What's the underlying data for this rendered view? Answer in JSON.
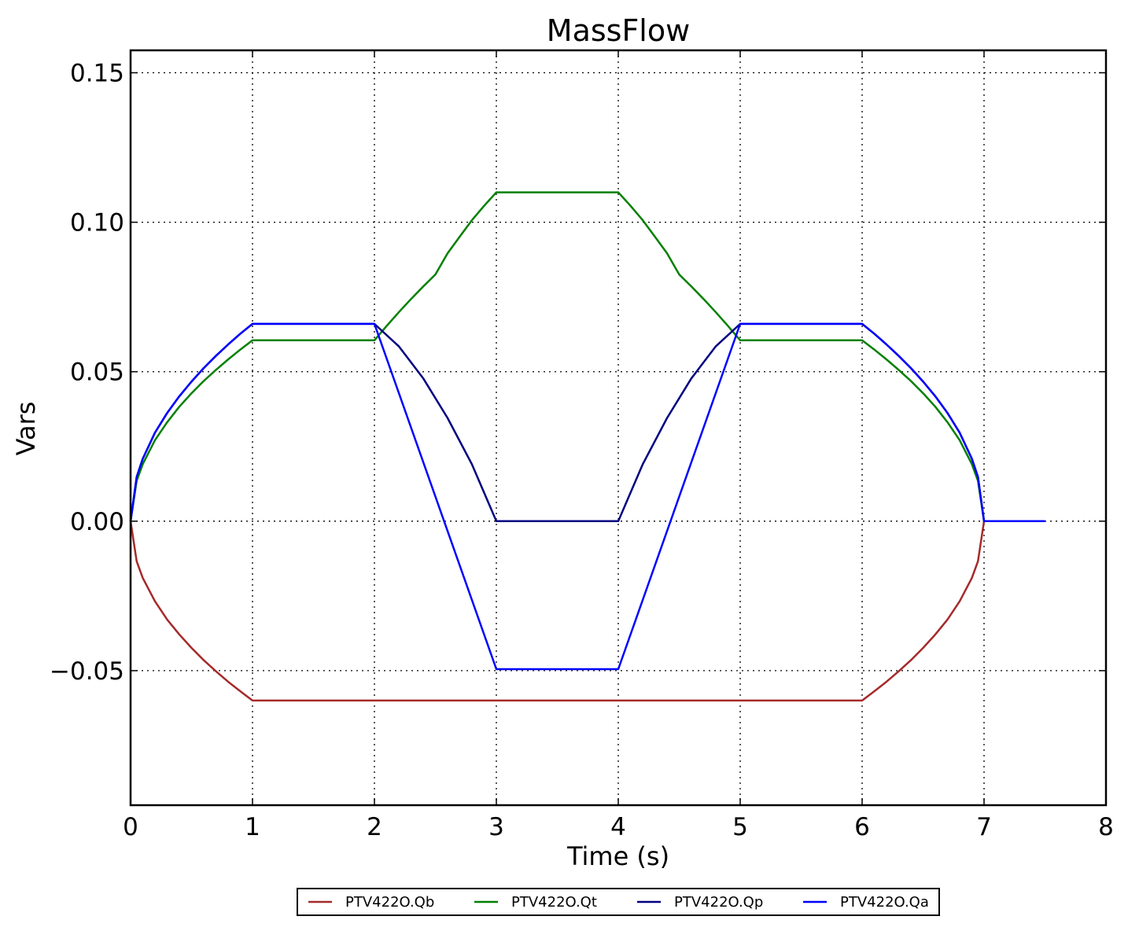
{
  "chart_data": {
    "type": "line",
    "title": "MassFlow",
    "xlabel": "Time (s)",
    "ylabel": "Vars",
    "xlim": [
      0,
      8
    ],
    "ylim": [
      -0.095,
      0.1575
    ],
    "xticks": [
      0,
      1,
      2,
      3,
      4,
      5,
      6,
      7,
      8
    ],
    "xtick_labels": [
      "0",
      "1",
      "2",
      "3",
      "4",
      "5",
      "6",
      "7",
      "8"
    ],
    "yticks": [
      -0.05,
      0.0,
      0.05,
      0.1,
      0.15
    ],
    "ytick_labels": [
      "−0.05",
      "0.00",
      "0.05",
      "0.10",
      "0.15"
    ],
    "grid": true,
    "legend_position": "bottom-center",
    "series": [
      {
        "name": "PTV422O.Qb",
        "color": "#a52a2a",
        "points": [
          [
            0,
            0
          ],
          [
            0.05,
            -0.0134
          ],
          [
            0.1,
            -0.019
          ],
          [
            0.2,
            -0.0268
          ],
          [
            0.3,
            -0.0329
          ],
          [
            0.4,
            -0.0379
          ],
          [
            0.5,
            -0.0424
          ],
          [
            0.6,
            -0.0465
          ],
          [
            0.7,
            -0.0502
          ],
          [
            0.8,
            -0.0537
          ],
          [
            0.9,
            -0.0569
          ],
          [
            1,
            -0.06
          ],
          [
            2,
            -0.06
          ],
          [
            3,
            -0.06
          ],
          [
            4,
            -0.06
          ],
          [
            5,
            -0.06
          ],
          [
            6,
            -0.06
          ],
          [
            6.1,
            -0.0569
          ],
          [
            6.2,
            -0.0537
          ],
          [
            6.3,
            -0.0502
          ],
          [
            6.4,
            -0.0465
          ],
          [
            6.5,
            -0.0424
          ],
          [
            6.6,
            -0.0379
          ],
          [
            6.7,
            -0.0329
          ],
          [
            6.8,
            -0.0268
          ],
          [
            6.9,
            -0.019
          ],
          [
            6.95,
            -0.0134
          ],
          [
            7,
            0
          ],
          [
            7.5,
            0
          ]
        ]
      },
      {
        "name": "PTV422O.Qt",
        "color": "#008000",
        "points": [
          [
            0,
            0
          ],
          [
            0.05,
            0.0135
          ],
          [
            0.1,
            0.0191
          ],
          [
            0.2,
            0.0271
          ],
          [
            0.3,
            0.0331
          ],
          [
            0.4,
            0.0383
          ],
          [
            0.5,
            0.0428
          ],
          [
            0.6,
            0.0469
          ],
          [
            0.7,
            0.0506
          ],
          [
            0.8,
            0.0541
          ],
          [
            0.9,
            0.0574
          ],
          [
            1,
            0.0605
          ],
          [
            2,
            0.0605
          ],
          [
            2.1,
            0.0653
          ],
          [
            2.2,
            0.0699
          ],
          [
            2.3,
            0.0743
          ],
          [
            2.4,
            0.0785
          ],
          [
            2.5,
            0.0825
          ],
          [
            2.6,
            0.0896
          ],
          [
            2.7,
            0.0952
          ],
          [
            2.8,
            0.1007
          ],
          [
            2.9,
            0.1055
          ],
          [
            3,
            0.11
          ],
          [
            4,
            0.11
          ],
          [
            4.1,
            0.1055
          ],
          [
            4.2,
            0.1007
          ],
          [
            4.3,
            0.0952
          ],
          [
            4.4,
            0.0896
          ],
          [
            4.5,
            0.0825
          ],
          [
            4.6,
            0.0785
          ],
          [
            4.7,
            0.0743
          ],
          [
            4.8,
            0.0699
          ],
          [
            4.9,
            0.0653
          ],
          [
            5,
            0.0605
          ],
          [
            6,
            0.0605
          ],
          [
            6.1,
            0.0574
          ],
          [
            6.2,
            0.0541
          ],
          [
            6.3,
            0.0506
          ],
          [
            6.4,
            0.0469
          ],
          [
            6.5,
            0.0428
          ],
          [
            6.6,
            0.0383
          ],
          [
            6.7,
            0.0331
          ],
          [
            6.8,
            0.0271
          ],
          [
            6.9,
            0.0191
          ],
          [
            6.95,
            0.0135
          ],
          [
            7,
            0
          ],
          [
            7.5,
            0
          ]
        ]
      },
      {
        "name": "PTV422O.Qp",
        "color": "#000080",
        "points": [
          [
            0,
            0
          ],
          [
            0.05,
            0.0148
          ],
          [
            0.1,
            0.0209
          ],
          [
            0.2,
            0.0296
          ],
          [
            0.3,
            0.0362
          ],
          [
            0.4,
            0.0418
          ],
          [
            0.5,
            0.0467
          ],
          [
            0.6,
            0.0512
          ],
          [
            0.7,
            0.0553
          ],
          [
            0.8,
            0.0591
          ],
          [
            0.9,
            0.0627
          ],
          [
            1,
            0.066
          ],
          [
            2,
            0.066
          ],
          [
            2.2,
            0.0585
          ],
          [
            2.4,
            0.0478
          ],
          [
            2.6,
            0.0345
          ],
          [
            2.8,
            0.019
          ],
          [
            3,
            0
          ],
          [
            4,
            0
          ],
          [
            4.2,
            0.019
          ],
          [
            4.4,
            0.0345
          ],
          [
            4.6,
            0.0478
          ],
          [
            4.8,
            0.0585
          ],
          [
            5,
            0.066
          ],
          [
            6,
            0.066
          ],
          [
            6.1,
            0.0627
          ],
          [
            6.2,
            0.0591
          ],
          [
            6.3,
            0.0553
          ],
          [
            6.4,
            0.0512
          ],
          [
            6.5,
            0.0467
          ],
          [
            6.6,
            0.0418
          ],
          [
            6.7,
            0.0362
          ],
          [
            6.8,
            0.0296
          ],
          [
            6.9,
            0.0209
          ],
          [
            6.95,
            0.0148
          ],
          [
            7,
            0
          ],
          [
            7.5,
            0
          ]
        ]
      },
      {
        "name": "PTV422O.Qa",
        "color": "#0000ff",
        "points": [
          [
            0,
            0
          ],
          [
            0.05,
            0.0148
          ],
          [
            0.1,
            0.0209
          ],
          [
            0.2,
            0.0296
          ],
          [
            0.3,
            0.0362
          ],
          [
            0.4,
            0.0418
          ],
          [
            0.5,
            0.0467
          ],
          [
            0.6,
            0.0512
          ],
          [
            0.7,
            0.0553
          ],
          [
            0.8,
            0.0591
          ],
          [
            0.9,
            0.0627
          ],
          [
            1,
            0.066
          ],
          [
            2,
            0.066
          ],
          [
            3,
            -0.0495
          ],
          [
            4,
            -0.0495
          ],
          [
            5,
            0.066
          ],
          [
            6,
            0.066
          ],
          [
            6.1,
            0.0627
          ],
          [
            6.2,
            0.0591
          ],
          [
            6.3,
            0.0553
          ],
          [
            6.4,
            0.0512
          ],
          [
            6.5,
            0.0467
          ],
          [
            6.6,
            0.0418
          ],
          [
            6.7,
            0.0362
          ],
          [
            6.8,
            0.0296
          ],
          [
            6.9,
            0.0209
          ],
          [
            6.95,
            0.0148
          ],
          [
            7,
            0
          ],
          [
            7.5,
            0
          ]
        ]
      }
    ]
  }
}
